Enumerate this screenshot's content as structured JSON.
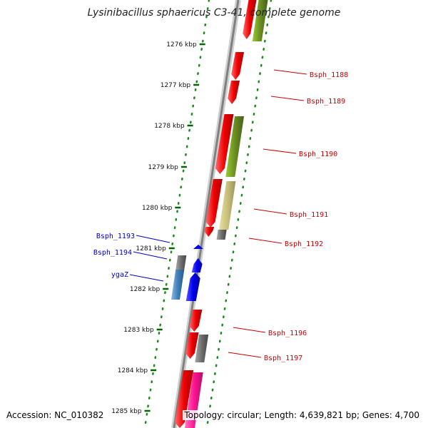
{
  "title": "Lysinibacillus sphaericus C3-41, complete genome",
  "footer": {
    "accession": "Accession: NC_010382",
    "summary": "Topology: circular; Length: 4,639,821 bp; Genes: 4,700"
  },
  "colors": {
    "red": "#ee0000",
    "dark_red": "#aa0000",
    "olive": "#6b8e23",
    "khaki": "#c8c07a",
    "gray": "#6e6e6e",
    "blue": "#0000ee",
    "steel_blue": "#3f7fb8",
    "magenta": "#ff1493",
    "scale_green": "#006400",
    "label_red": "#cc0000",
    "label_blue": "#0000cc"
  },
  "scale_ticks": [
    "1276 kbp",
    "1277 kbp",
    "1278 kbp",
    "1279 kbp",
    "1280 kbp",
    "1281 kbp",
    "1282 kbp",
    "1283 kbp",
    "1284 kbp",
    "1285 kbp"
  ],
  "gene_labels": [
    {
      "name": "Bsph_1188",
      "color": "red"
    },
    {
      "name": "Bsph_1189",
      "color": "red"
    },
    {
      "name": "Bsph_1190",
      "color": "red"
    },
    {
      "name": "Bsph_1191",
      "color": "red"
    },
    {
      "name": "Bsph_1192",
      "color": "red"
    },
    {
      "name": "Bsph_1193",
      "color": "blue"
    },
    {
      "name": "Bsph_1194",
      "color": "blue"
    },
    {
      "name": "ygaZ",
      "color": "blue"
    },
    {
      "name": "Bsph_1196",
      "color": "red"
    },
    {
      "name": "Bsph_1197",
      "color": "red"
    }
  ]
}
